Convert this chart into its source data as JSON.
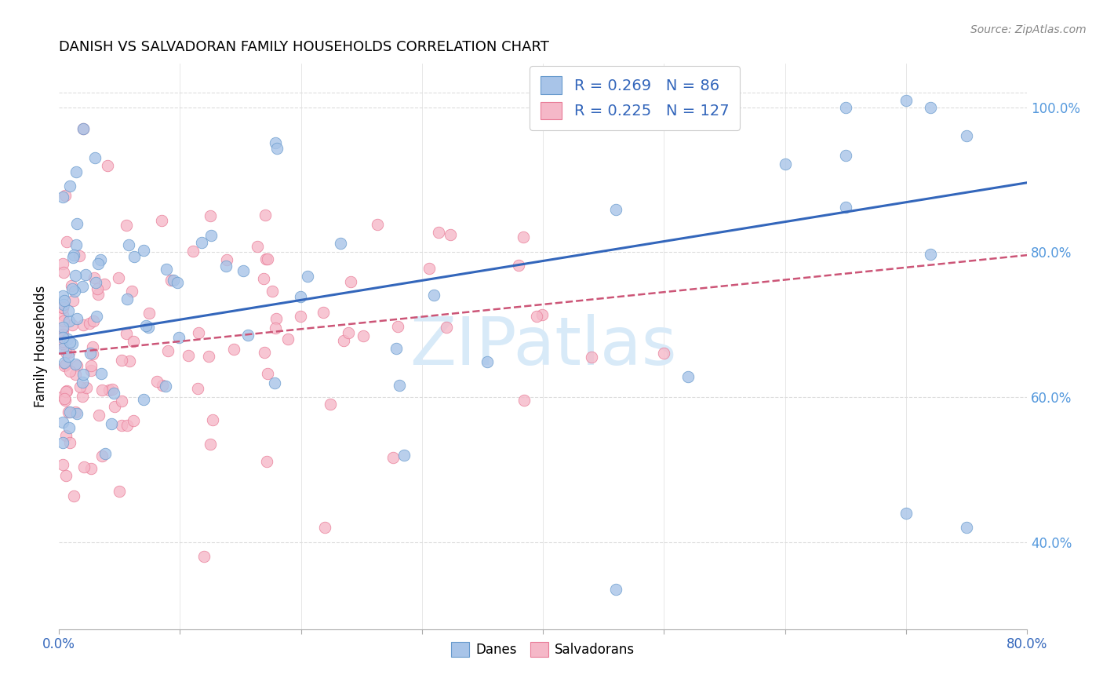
{
  "title": "DANISH VS SALVADORAN FAMILY HOUSEHOLDS CORRELATION CHART",
  "source": "Source: ZipAtlas.com",
  "ylabel": "Family Households",
  "ytick_values": [
    0.4,
    0.6,
    0.8,
    1.0
  ],
  "xlim": [
    0.0,
    0.8
  ],
  "ylim": [
    0.28,
    1.06
  ],
  "legend_top": {
    "blue_r": "0.269",
    "blue_n": "86",
    "pink_r": "0.225",
    "pink_n": "127"
  },
  "legend_bottom": [
    "Danes",
    "Salvadorans"
  ],
  "blue_scatter_color": "#a8c4e8",
  "blue_scatter_edge": "#6699cc",
  "pink_scatter_color": "#f5b8c8",
  "pink_scatter_edge": "#e87a96",
  "blue_line_color": "#3366bb",
  "pink_line_color": "#cc5577",
  "watermark_color": "#d8eaf8",
  "grid_color": "#dddddd",
  "right_tick_color": "#5599dd",
  "legend_r_color": "#3366bb",
  "seed_danes": 77,
  "seed_salvadorans": 88
}
